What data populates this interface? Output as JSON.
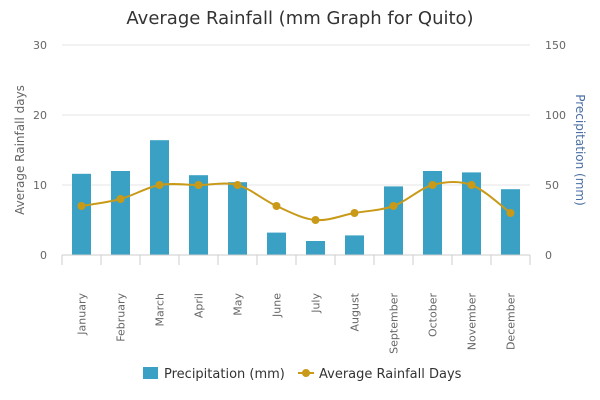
{
  "chart_data": {
    "type": "bar",
    "title": "Average Rainfall (mm Graph for Quito)",
    "categories": [
      "January",
      "February",
      "March",
      "April",
      "May",
      "June",
      "July",
      "August",
      "September",
      "October",
      "November",
      "December"
    ],
    "series": [
      {
        "name": "Precipitation (mm)",
        "type": "bar",
        "axis": "right",
        "color": "#3aa1c4",
        "values": [
          58,
          60,
          82,
          57,
          52,
          16,
          10,
          14,
          49,
          60,
          59,
          47
        ]
      },
      {
        "name": "Average Rainfall Days",
        "type": "line",
        "axis": "left",
        "color": "#c99a18",
        "values": [
          7,
          8,
          10,
          10,
          10,
          7,
          5,
          6,
          7,
          10,
          10,
          6
        ]
      }
    ],
    "y_left": {
      "label": "Average Rainfall days",
      "ylim": [
        0,
        30
      ],
      "ticks": [
        0,
        10,
        20,
        30
      ],
      "color": "#666666"
    },
    "y_right": {
      "label": "Precipitation (mm)",
      "ylim": [
        0,
        150
      ],
      "ticks": [
        0,
        50,
        100,
        150
      ],
      "color": "#4a6fa5"
    },
    "grid": true,
    "legend_position": "bottom-center"
  }
}
